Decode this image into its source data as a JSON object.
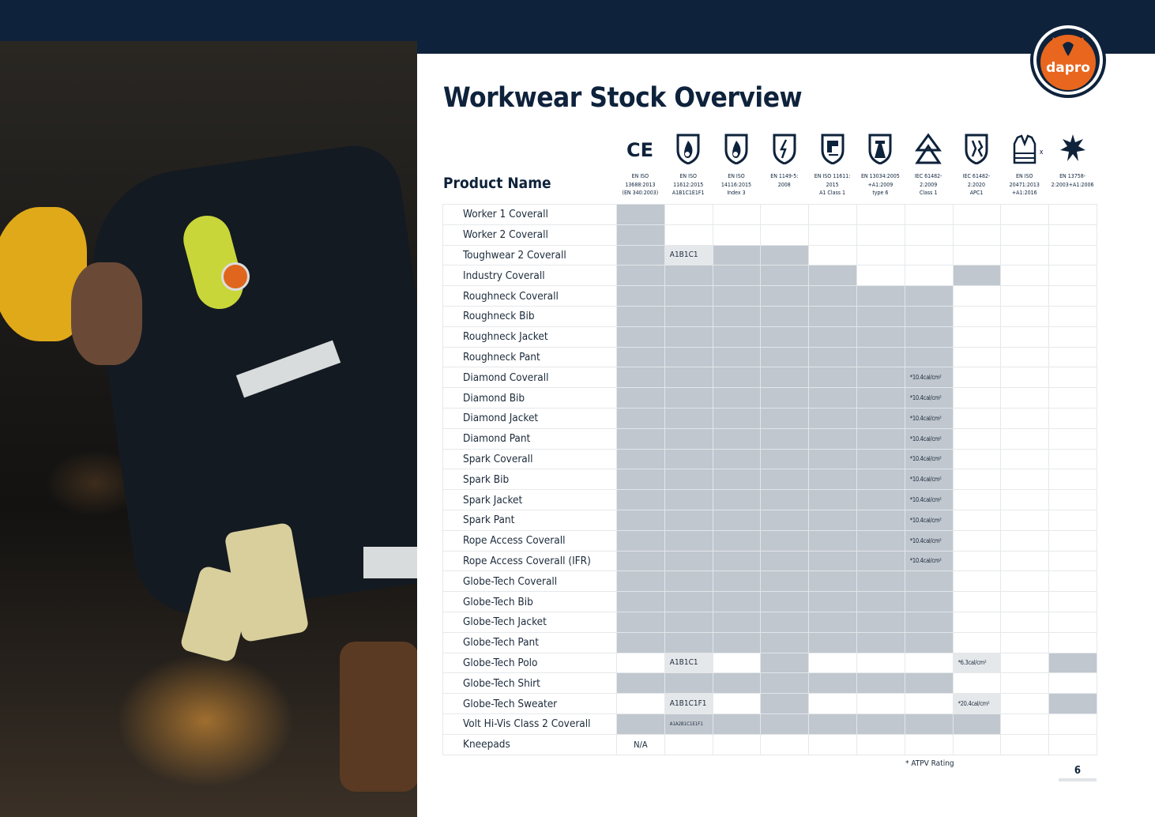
{
  "brand": {
    "logo_text": "dapro",
    "navy": "#0e223b",
    "orange": "#e8661e"
  },
  "title": "Workwear Stock Overview",
  "table": {
    "product_header": "Product Name",
    "standards": [
      {
        "icon": "ce-mark-icon",
        "label": "EN ISO\n13688:2013\n(EN 340:2003)"
      },
      {
        "icon": "flame-shield-icon",
        "label": "EN ISO\n11612:2015\nA1B1C1E1F1"
      },
      {
        "icon": "flame-shield-icon",
        "label": "EN ISO\n14116:2015\nIndex 3"
      },
      {
        "icon": "electrostatic-shield-icon",
        "label": "EN 1149-5:\n2008"
      },
      {
        "icon": "welding-shield-icon",
        "label": "EN ISO 11611:\n2015\nA1 Class 1"
      },
      {
        "icon": "chemical-shield-icon",
        "label": "EN 13034:2005\n+A1:2009\ntype 6"
      },
      {
        "icon": "arc-triangle-icon",
        "label": "IEC 61482-\n2:2009\nClass 1"
      },
      {
        "icon": "arc-shield-icon",
        "label": "IEC 61482-\n2:2020\nAPC1"
      },
      {
        "icon": "hi-vis-vest-icon",
        "label": "EN ISO\n20471:2013\n+A1:2016",
        "suffix": "x"
      },
      {
        "icon": "rain-protection-icon",
        "label": "EN 13758-\n2:2003+A1:2006"
      }
    ],
    "rows": [
      {
        "name": "Worker 1 Coverall",
        "cells": [
          "F",
          "E",
          "E",
          "E",
          "E",
          "E",
          "E",
          "E",
          "E",
          "E"
        ]
      },
      {
        "name": "Worker 2 Coverall",
        "cells": [
          "F",
          "E",
          "E",
          "E",
          "E",
          "E",
          "E",
          "E",
          "E",
          "E"
        ]
      },
      {
        "name": "Toughwear 2 Coverall",
        "cells": [
          "F",
          "L",
          "F",
          "F",
          "E",
          "E",
          "E",
          "E",
          "E",
          "E"
        ],
        "text": {
          "1": "A1B1C1"
        }
      },
      {
        "name": "Industry Coverall",
        "cells": [
          "F",
          "F",
          "F",
          "F",
          "F",
          "E",
          "E",
          "F",
          "E",
          "E"
        ]
      },
      {
        "name": "Roughneck Coverall",
        "cells": [
          "F",
          "F",
          "F",
          "F",
          "F",
          "F",
          "F",
          "E",
          "E",
          "E"
        ]
      },
      {
        "name": "Roughneck Bib",
        "cells": [
          "F",
          "F",
          "F",
          "F",
          "F",
          "F",
          "F",
          "E",
          "E",
          "E"
        ]
      },
      {
        "name": "Roughneck Jacket",
        "cells": [
          "F",
          "F",
          "F",
          "F",
          "F",
          "F",
          "F",
          "E",
          "E",
          "E"
        ]
      },
      {
        "name": "Roughneck Pant",
        "cells": [
          "F",
          "F",
          "F",
          "F",
          "F",
          "F",
          "F",
          "E",
          "E",
          "E"
        ]
      },
      {
        "name": "Diamond Coverall",
        "cells": [
          "F",
          "F",
          "F",
          "F",
          "F",
          "F",
          "F",
          "E",
          "E",
          "E"
        ],
        "text": {
          "6": "*10.4cal/cm²"
        }
      },
      {
        "name": "Diamond Bib",
        "cells": [
          "F",
          "F",
          "F",
          "F",
          "F",
          "F",
          "F",
          "E",
          "E",
          "E"
        ],
        "text": {
          "6": "*10.4cal/cm²"
        }
      },
      {
        "name": "Diamond Jacket",
        "cells": [
          "F",
          "F",
          "F",
          "F",
          "F",
          "F",
          "F",
          "E",
          "E",
          "E"
        ],
        "text": {
          "6": "*10.4cal/cm²"
        }
      },
      {
        "name": "Diamond Pant",
        "cells": [
          "F",
          "F",
          "F",
          "F",
          "F",
          "F",
          "F",
          "E",
          "E",
          "E"
        ],
        "text": {
          "6": "*10.4cal/cm²"
        }
      },
      {
        "name": "Spark Coverall",
        "cells": [
          "F",
          "F",
          "F",
          "F",
          "F",
          "F",
          "F",
          "E",
          "E",
          "E"
        ],
        "text": {
          "6": "*10.4cal/cm²"
        }
      },
      {
        "name": "Spark Bib",
        "cells": [
          "F",
          "F",
          "F",
          "F",
          "F",
          "F",
          "F",
          "E",
          "E",
          "E"
        ],
        "text": {
          "6": "*10.4cal/cm²"
        }
      },
      {
        "name": "Spark Jacket",
        "cells": [
          "F",
          "F",
          "F",
          "F",
          "F",
          "F",
          "F",
          "E",
          "E",
          "E"
        ],
        "text": {
          "6": "*10.4cal/cm²"
        }
      },
      {
        "name": "Spark Pant",
        "cells": [
          "F",
          "F",
          "F",
          "F",
          "F",
          "F",
          "F",
          "E",
          "E",
          "E"
        ],
        "text": {
          "6": "*10.4cal/cm²"
        }
      },
      {
        "name": "Rope Access Coverall",
        "cells": [
          "F",
          "F",
          "F",
          "F",
          "F",
          "F",
          "F",
          "E",
          "E",
          "E"
        ],
        "text": {
          "6": "*10.4cal/cm²"
        }
      },
      {
        "name": "Rope Access Coverall (IFR)",
        "cells": [
          "F",
          "F",
          "F",
          "F",
          "F",
          "F",
          "F",
          "E",
          "E",
          "E"
        ],
        "text": {
          "6": "*10.4cal/cm²"
        }
      },
      {
        "name": "Globe-Tech Coverall",
        "cells": [
          "F",
          "F",
          "F",
          "F",
          "F",
          "F",
          "F",
          "E",
          "E",
          "E"
        ]
      },
      {
        "name": "Globe-Tech Bib",
        "cells": [
          "F",
          "F",
          "F",
          "F",
          "F",
          "F",
          "F",
          "E",
          "E",
          "E"
        ]
      },
      {
        "name": "Globe-Tech Jacket",
        "cells": [
          "F",
          "F",
          "F",
          "F",
          "F",
          "F",
          "F",
          "E",
          "E",
          "E"
        ]
      },
      {
        "name": "Globe-Tech Pant",
        "cells": [
          "F",
          "F",
          "F",
          "F",
          "F",
          "F",
          "F",
          "E",
          "E",
          "E"
        ]
      },
      {
        "name": "Globe-Tech Polo",
        "cells": [
          "E",
          "L",
          "E",
          "F",
          "E",
          "E",
          "E",
          "L",
          "E",
          "F"
        ],
        "text": {
          "1": "A1B1C1",
          "7": "*6.3cal/cm²"
        }
      },
      {
        "name": "Globe-Tech Shirt",
        "cells": [
          "F",
          "F",
          "F",
          "F",
          "F",
          "F",
          "F",
          "E",
          "E",
          "E"
        ]
      },
      {
        "name": "Globe-Tech Sweater",
        "cells": [
          "E",
          "L",
          "E",
          "F",
          "E",
          "E",
          "E",
          "L",
          "E",
          "F"
        ],
        "text": {
          "1": "A1B1C1F1",
          "7": "*20.4cal/cm²"
        }
      },
      {
        "name": "Volt Hi-Vis Class 2 Coverall",
        "cells": [
          "F",
          "F",
          "F",
          "F",
          "F",
          "F",
          "F",
          "F",
          "E",
          "E"
        ],
        "text": {
          "1": "A1A2B1C1E1F1"
        }
      },
      {
        "name": "Kneepads",
        "cells": [
          "E",
          "E",
          "E",
          "E",
          "E",
          "E",
          "E",
          "E",
          "E",
          "E"
        ],
        "text": {
          "0": "N/A"
        }
      }
    ]
  },
  "footnote": "* ATPV Rating",
  "page_number": "6"
}
